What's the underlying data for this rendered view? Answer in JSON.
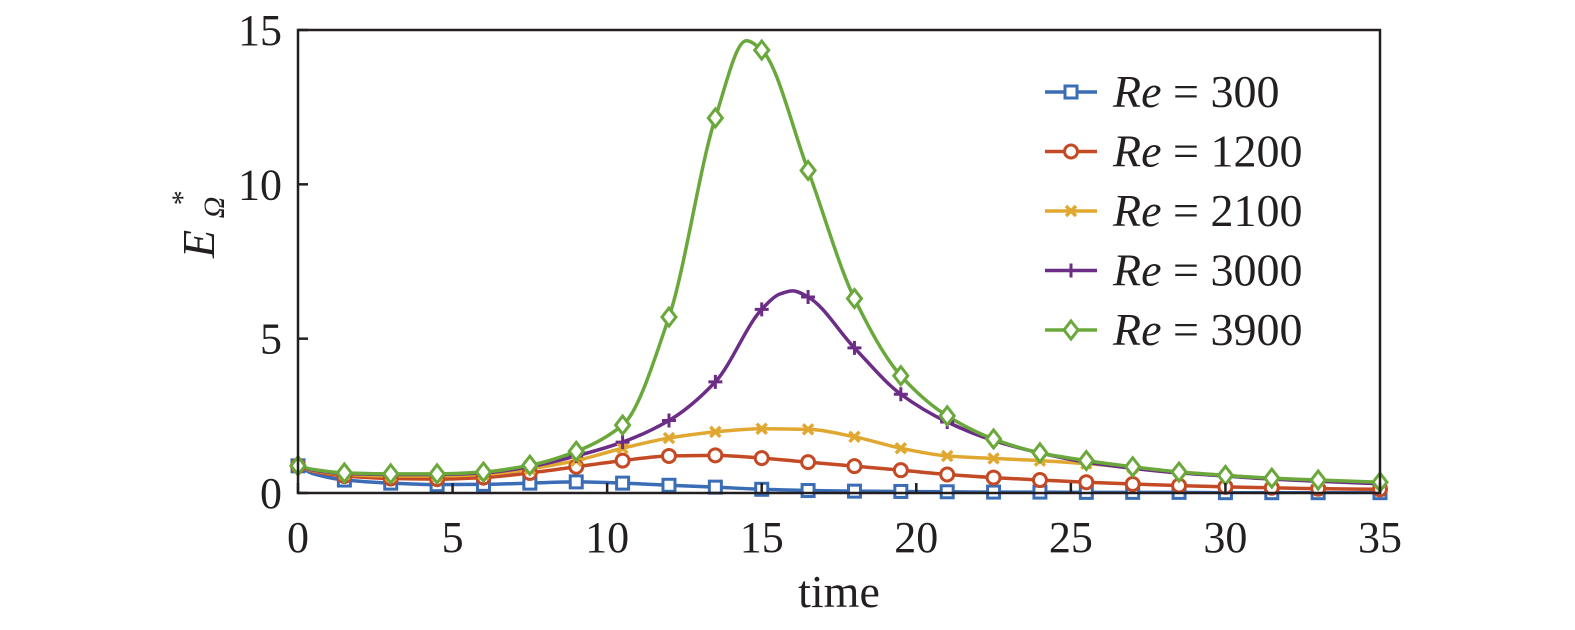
{
  "chart_data": {
    "type": "line",
    "title": "",
    "xlabel": "time",
    "ylabel_main": "E",
    "ylabel_sup": "*",
    "ylabel_sub": "Ω",
    "xlim": [
      0,
      35
    ],
    "ylim": [
      0,
      15
    ],
    "xticks": [
      0,
      5,
      10,
      15,
      20,
      25,
      30,
      35
    ],
    "yticks": [
      0,
      5,
      10,
      15
    ],
    "grid": false,
    "legend_position": "top-right",
    "series": [
      {
        "name_var": "Re",
        "name_eq": " = 300",
        "color": "#3a6db5",
        "marker": "square",
        "x": [
          0,
          0.5,
          1.5,
          3,
          4.5,
          6,
          7.5,
          9,
          10.5,
          12,
          13.5,
          15,
          16.5,
          18,
          19.5,
          21,
          22.5,
          24,
          25.5,
          27,
          28.5,
          30,
          31.5,
          33,
          35
        ],
        "y": [
          0.88,
          0.62,
          0.42,
          0.32,
          0.27,
          0.28,
          0.32,
          0.36,
          0.32,
          0.25,
          0.19,
          0.12,
          0.08,
          0.06,
          0.05,
          0.04,
          0.03,
          0.03,
          0.02,
          0.02,
          0.02,
          0.01,
          0.01,
          0.01,
          0.01
        ],
        "marker_x": [
          0,
          1.5,
          3,
          4.5,
          6,
          7.5,
          9,
          10.5,
          12,
          13.5,
          15,
          16.5,
          18,
          19.5,
          21,
          22.5,
          24,
          25.5,
          27,
          28.5,
          30,
          31.5,
          33,
          35
        ]
      },
      {
        "name_var": "Re",
        "name_eq": " = 1200",
        "color": "#c44a25",
        "marker": "circle",
        "x": [
          0,
          0.5,
          1.5,
          3,
          4.5,
          6,
          7.5,
          9,
          10.5,
          12,
          13.5,
          15,
          16.5,
          18,
          19.5,
          21,
          22.5,
          24,
          25.5,
          27,
          28.5,
          30,
          31.5,
          33,
          35
        ],
        "y": [
          0.88,
          0.7,
          0.55,
          0.47,
          0.45,
          0.5,
          0.65,
          0.85,
          1.05,
          1.2,
          1.22,
          1.13,
          1.0,
          0.87,
          0.74,
          0.6,
          0.5,
          0.42,
          0.35,
          0.29,
          0.24,
          0.2,
          0.17,
          0.14,
          0.12
        ],
        "marker_x": [
          0,
          1.5,
          3,
          4.5,
          6,
          7.5,
          9,
          10.5,
          12,
          13.5,
          15,
          16.5,
          18,
          19.5,
          21,
          22.5,
          24,
          25.5,
          27,
          28.5,
          30,
          31.5,
          33,
          35
        ]
      },
      {
        "name_var": "Re",
        "name_eq": " = 2100",
        "color": "#e0a830",
        "marker": "x",
        "x": [
          0,
          0.5,
          1.5,
          3,
          4.5,
          6,
          7.5,
          9,
          10.5,
          12,
          13.5,
          15,
          16.5,
          18,
          19.5,
          21,
          22.5,
          24,
          25.5,
          27,
          28.5,
          30,
          31.5,
          33,
          35
        ],
        "y": [
          0.88,
          0.72,
          0.6,
          0.55,
          0.55,
          0.6,
          0.78,
          1.05,
          1.45,
          1.78,
          1.98,
          2.08,
          2.06,
          1.82,
          1.45,
          1.2,
          1.12,
          1.05,
          0.95,
          0.82,
          0.68,
          0.57,
          0.47,
          0.4,
          0.33
        ],
        "marker_x": [
          0,
          1.5,
          3,
          4.5,
          6,
          7.5,
          9,
          10.5,
          12,
          13.5,
          15,
          16.5,
          18,
          19.5,
          21,
          22.5,
          24,
          25.5,
          27,
          28.5,
          30,
          31.5,
          33,
          35
        ]
      },
      {
        "name_var": "Re",
        "name_eq": " = 3000",
        "color": "#6b2d86",
        "marker": "plus",
        "x": [
          0,
          0.5,
          1.5,
          3,
          4.5,
          6,
          7.5,
          9,
          10.5,
          12,
          13.5,
          15,
          15.6,
          16,
          16.5,
          18,
          19.5,
          21,
          22.5,
          24,
          25.5,
          27,
          28.5,
          30,
          31.5,
          33,
          35
        ],
        "y": [
          0.88,
          0.74,
          0.63,
          0.6,
          0.6,
          0.65,
          0.85,
          1.2,
          1.65,
          2.35,
          3.6,
          5.95,
          6.45,
          6.55,
          6.35,
          4.7,
          3.2,
          2.3,
          1.7,
          1.3,
          1.0,
          0.8,
          0.65,
          0.55,
          0.45,
          0.38,
          0.3
        ],
        "marker_x": [
          0,
          1.5,
          3,
          4.5,
          6,
          7.5,
          9,
          10.5,
          12,
          13.5,
          15,
          16.5,
          18,
          19.5,
          21,
          22.5,
          24,
          25.5,
          27,
          28.5,
          30,
          31.5,
          33,
          35
        ]
      },
      {
        "name_var": "Re",
        "name_eq": " = 3900",
        "color": "#6aa83c",
        "marker": "diamond",
        "x": [
          0,
          0.5,
          1.5,
          3,
          4.5,
          6,
          7.5,
          9,
          10.5,
          12,
          13.5,
          14.5,
          15,
          16.5,
          18,
          19.5,
          21,
          22.5,
          24,
          25.5,
          27,
          28.5,
          30,
          31.5,
          33,
          35
        ],
        "y": [
          0.88,
          0.76,
          0.65,
          0.62,
          0.62,
          0.68,
          0.9,
          1.35,
          2.2,
          5.7,
          12.15,
          14.65,
          14.35,
          10.45,
          6.3,
          3.8,
          2.5,
          1.75,
          1.3,
          1.05,
          0.85,
          0.68,
          0.57,
          0.48,
          0.42,
          0.35
        ],
        "marker_x": [
          0,
          1.5,
          3,
          4.5,
          6,
          7.5,
          9,
          10.5,
          12,
          13.5,
          15,
          16.5,
          18,
          19.5,
          21,
          22.5,
          24,
          25.5,
          27,
          28.5,
          30,
          31.5,
          33,
          35
        ]
      }
    ]
  }
}
